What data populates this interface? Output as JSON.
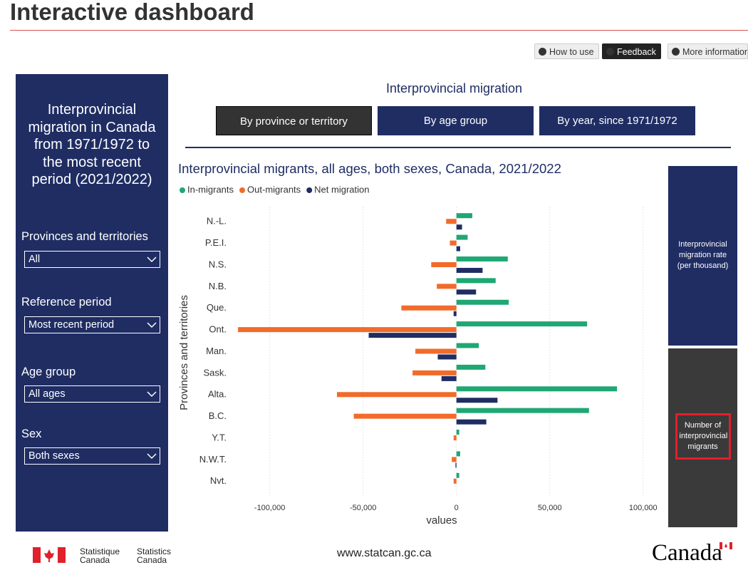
{
  "header": {
    "title": "Interactive dashboard",
    "buttons": [
      "How to use",
      "Feedback",
      "More information"
    ]
  },
  "sidebar": {
    "title": "Interprovincial migration in Canada from 1971/1972 to the most recent period (2021/2022)",
    "filters": [
      {
        "label": "Provinces and territories",
        "value": "All"
      },
      {
        "label": "Reference period",
        "value": "Most recent period"
      },
      {
        "label": "Age group",
        "value": "All ages"
      },
      {
        "label": "Sex",
        "value": "Both sexes"
      }
    ]
  },
  "main": {
    "heading": "Interprovincial migration",
    "tabs": [
      "By province or territory",
      "By age group",
      "By year, since 1971/1972"
    ]
  },
  "chart_data": {
    "type": "bar",
    "orientation": "horizontal",
    "title": "Interprovincial migrants, all ages, both sexes, Canada, 2021/2022",
    "xlabel": "values",
    "ylabel": "Provinces and territories",
    "categories": [
      "N.-L.",
      "P.E.I.",
      "N.S.",
      "N.B.",
      "Que.",
      "Ont.",
      "Man.",
      "Sask.",
      "Alta.",
      "B.C.",
      "Y.T.",
      "N.W.T.",
      "Nvt."
    ],
    "series": [
      {
        "name": "In-migrants",
        "color": "#1fa774",
        "values": [
          8500,
          6000,
          27500,
          21000,
          28000,
          70000,
          12000,
          15500,
          86000,
          71000,
          1500,
          2000,
          1500
        ]
      },
      {
        "name": "Out-migrants",
        "color": "#f26b2a",
        "values": [
          -5500,
          -3500,
          -13500,
          -10500,
          -29500,
          -117000,
          -22000,
          -23500,
          -64000,
          -55000,
          -1500,
          -2500,
          -1500
        ]
      },
      {
        "name": "Net migration",
        "color": "#1f2d63",
        "values": [
          3000,
          2000,
          14000,
          10500,
          -1500,
          -47000,
          -10000,
          -8000,
          22000,
          16000,
          0,
          -500,
          0
        ]
      }
    ],
    "xlim": [
      -130000,
      110000
    ],
    "xticks": [
      {
        "value": -100000,
        "label": "-100,000"
      },
      {
        "value": -50000,
        "label": "-50,000"
      },
      0,
      {
        "value": 50000,
        "label": "50,000"
      },
      {
        "value": 100000,
        "label": "100,000"
      }
    ],
    "grid": true,
    "legend": "top-left"
  },
  "side_panel": {
    "options": [
      "Interprovincial migration rate (per thousand)",
      "Number of interprovincial migrants"
    ]
  },
  "footer": {
    "agency_fr": "Statistique Canada",
    "agency_en": "Statistics Canada",
    "url": "www.statcan.gc.ca",
    "wordmark": "Canada"
  }
}
